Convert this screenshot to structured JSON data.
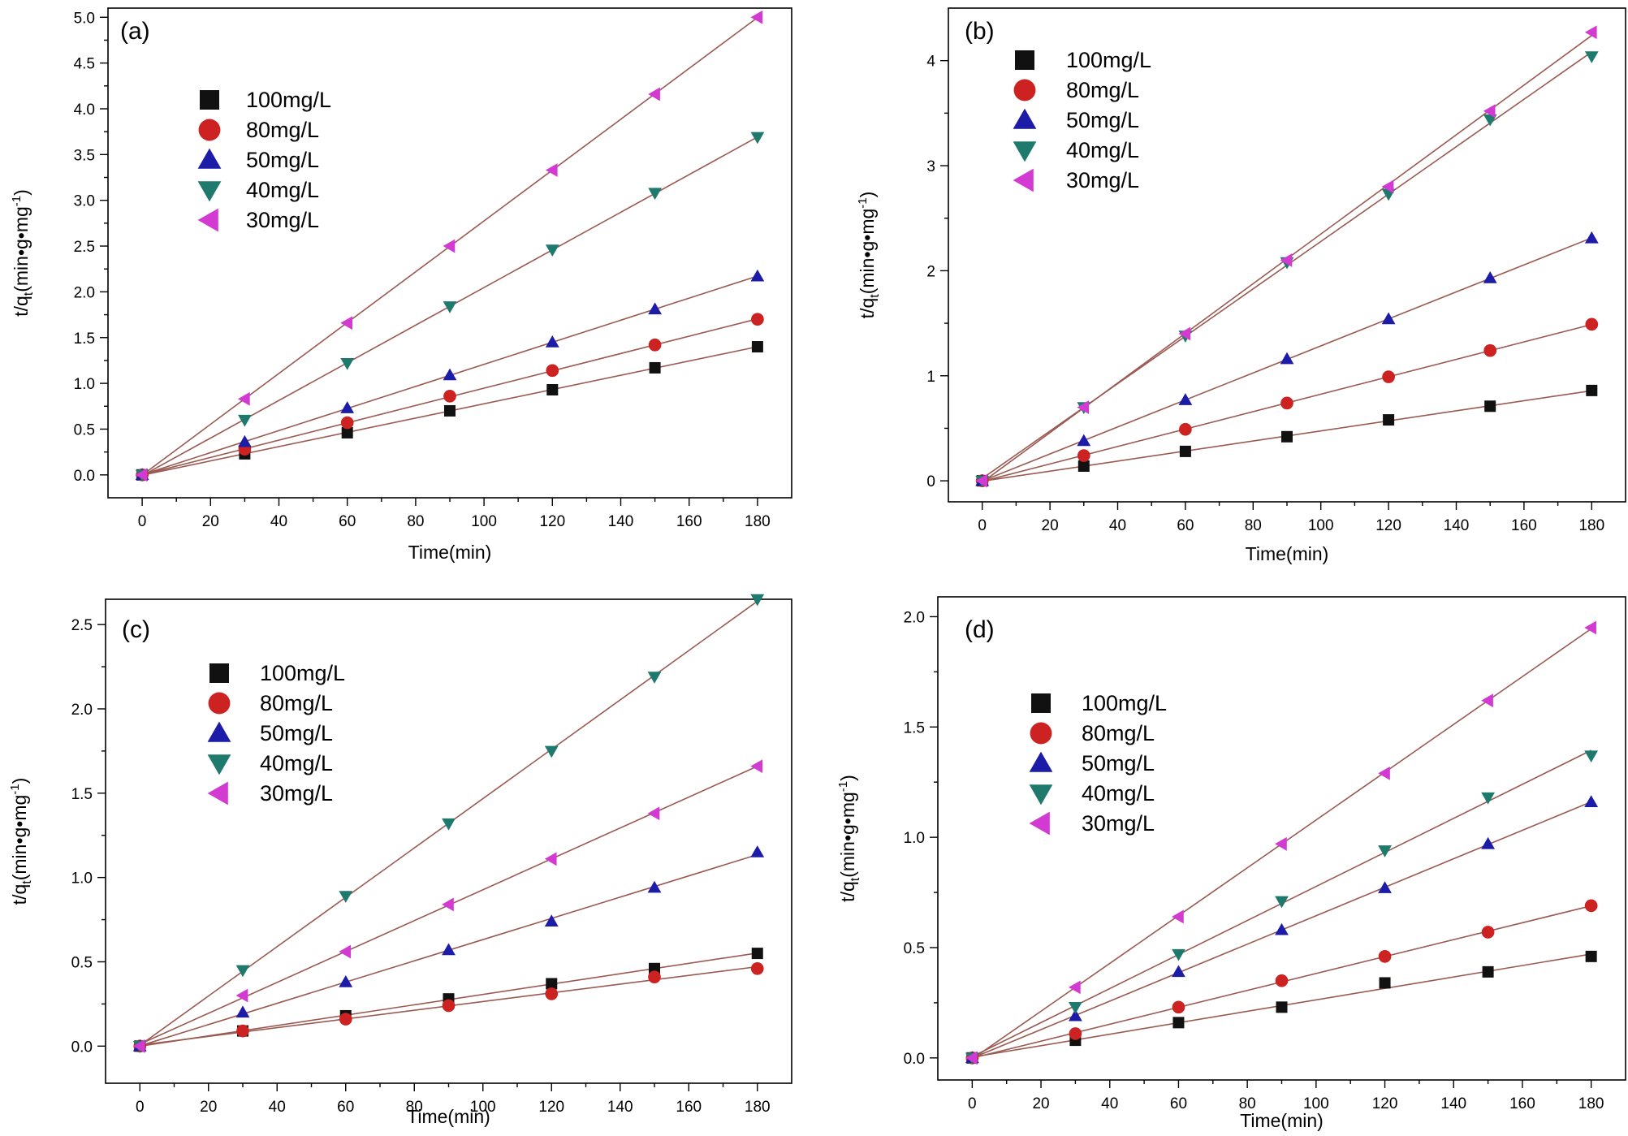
{
  "series_styles": [
    {
      "marker": "square",
      "color": "#111111"
    },
    {
      "marker": "circle",
      "color": "#cc2222"
    },
    {
      "marker": "triangle-up",
      "color": "#1c1ca8"
    },
    {
      "marker": "triangle-down",
      "color": "#1f7a6e"
    },
    {
      "marker": "triangle-left",
      "color": "#d23ad2"
    }
  ],
  "line_color": "#9a5a52",
  "chart_data": [
    {
      "type": "scatter",
      "panel_label": "(a)",
      "title": "",
      "xlabel": "Time(min)",
      "ylabel": "t/q(min•g•mg)",
      "ylabel_parts": {
        "main": "t/q",
        "sub": "t",
        "unit": "(min•g•mg",
        "sup": "-1",
        "close": ")"
      },
      "xlim": [
        -10,
        190
      ],
      "ylim": [
        -0.25,
        5.1
      ],
      "xticks": [
        0,
        20,
        40,
        60,
        80,
        100,
        120,
        140,
        160,
        180
      ],
      "xtick_labels": [
        "0",
        "20",
        "40",
        "60",
        "80",
        "100",
        "120",
        "140",
        "160",
        "180"
      ],
      "yticks": [
        0.0,
        0.5,
        1.0,
        1.5,
        2.0,
        2.5,
        3.0,
        3.5,
        4.0,
        4.5,
        5.0
      ],
      "ytick_labels": [
        "0.0",
        "0.5",
        "1.0",
        "1.5",
        "2.0",
        "2.5",
        "3.0",
        "3.5",
        "4.0",
        "4.5",
        "5.0"
      ],
      "x": [
        0,
        30,
        60,
        90,
        120,
        150,
        180
      ],
      "legend_placement": "upper-left",
      "series": [
        {
          "name": "100mg/L",
          "values": [
            0,
            0.23,
            0.46,
            0.7,
            0.93,
            1.17,
            1.4
          ]
        },
        {
          "name": "80mg/L",
          "values": [
            0,
            0.28,
            0.57,
            0.86,
            1.14,
            1.42,
            1.7
          ]
        },
        {
          "name": "50mg/L",
          "values": [
            0,
            0.36,
            0.73,
            1.09,
            1.45,
            1.81,
            2.17
          ]
        },
        {
          "name": "40mg/L",
          "values": [
            0,
            0.6,
            1.22,
            1.84,
            2.46,
            3.08,
            3.69
          ]
        },
        {
          "name": "30mg/L",
          "values": [
            0,
            0.83,
            1.66,
            2.5,
            3.33,
            4.16,
            5.0
          ]
        }
      ]
    },
    {
      "type": "scatter",
      "panel_label": "(b)",
      "title": "",
      "xlabel": "Time(min)",
      "ylabel": "t/q(min•g•mg)",
      "ylabel_parts": {
        "main": "t/q",
        "sub": "t",
        "unit": "(min•g•mg",
        "sup": "-1",
        "close": ")"
      },
      "xlim": [
        -10,
        190
      ],
      "ylim": [
        -0.2,
        4.5
      ],
      "xticks": [
        0,
        20,
        40,
        60,
        80,
        100,
        120,
        140,
        160,
        180
      ],
      "xtick_labels": [
        "0",
        "20",
        "40",
        "60",
        "80",
        "100",
        "120",
        "140",
        "160",
        "180"
      ],
      "yticks": [
        0,
        1,
        2,
        3,
        4
      ],
      "ytick_labels": [
        "0",
        "1",
        "2",
        "3",
        "4"
      ],
      "x": [
        0,
        30,
        60,
        90,
        120,
        150,
        180
      ],
      "legend_placement": "upper-left",
      "series": [
        {
          "name": "100mg/L",
          "values": [
            0,
            0.14,
            0.28,
            0.42,
            0.58,
            0.71,
            0.86
          ]
        },
        {
          "name": "80mg/L",
          "values": [
            0,
            0.24,
            0.49,
            0.74,
            0.99,
            1.24,
            1.49
          ]
        },
        {
          "name": "50mg/L",
          "values": [
            0,
            0.38,
            0.77,
            1.16,
            1.54,
            1.93,
            2.31
          ]
        },
        {
          "name": "40mg/L",
          "values": [
            0,
            0.7,
            1.38,
            2.08,
            2.73,
            3.44,
            4.04
          ]
        },
        {
          "name": "30mg/L",
          "values": [
            0,
            0.7,
            1.4,
            2.1,
            2.8,
            3.52,
            4.27
          ]
        }
      ]
    },
    {
      "type": "scatter",
      "panel_label": "(c)",
      "title": "",
      "xlabel": "Time(min)",
      "ylabel": "t/q(min•g•mg)",
      "ylabel_parts": {
        "main": "t/q",
        "sub": "t",
        "unit": "(min•g•mg",
        "sup": "-1",
        "close": ")"
      },
      "xlim": [
        -10,
        190
      ],
      "ylim": [
        -0.22,
        2.65
      ],
      "xticks": [
        0,
        20,
        40,
        60,
        80,
        100,
        120,
        140,
        160,
        180
      ],
      "xtick_labels": [
        "0",
        "20",
        "40",
        "60",
        "80",
        "100",
        "120",
        "140",
        "160",
        "180"
      ],
      "yticks": [
        0.0,
        0.5,
        1.0,
        1.5,
        2.0,
        2.5
      ],
      "ytick_labels": [
        "0.0",
        "0.5",
        "1.0",
        "1.5",
        "2.0",
        "2.5"
      ],
      "x": [
        0,
        30,
        60,
        90,
        120,
        150,
        180
      ],
      "legend_placement": "upper-left",
      "series": [
        {
          "name": "100mg/L",
          "values": [
            0,
            0.09,
            0.18,
            0.28,
            0.37,
            0.46,
            0.55
          ]
        },
        {
          "name": "80mg/L",
          "values": [
            0,
            0.09,
            0.16,
            0.24,
            0.31,
            0.41,
            0.46
          ]
        },
        {
          "name": "50mg/L",
          "values": [
            0,
            0.2,
            0.38,
            0.57,
            0.74,
            0.94,
            1.15
          ]
        },
        {
          "name": "40mg/L",
          "values": [
            0,
            0.45,
            0.89,
            1.32,
            1.75,
            2.19,
            2.65
          ]
        },
        {
          "name": "30mg/L",
          "values": [
            0,
            0.3,
            0.56,
            0.84,
            1.11,
            1.38,
            1.66
          ]
        }
      ]
    },
    {
      "type": "scatter",
      "panel_label": "(d)",
      "title": "",
      "xlabel": "Time(min)",
      "ylabel": "t/q(min•g•mg)",
      "ylabel_parts": {
        "main": "t/q",
        "sub": "t",
        "unit": "(min•g•mg",
        "sup": "-1",
        "close": ")"
      },
      "xlim": [
        -10,
        190
      ],
      "ylim": [
        -0.1,
        2.09
      ],
      "xticks": [
        0,
        20,
        40,
        60,
        80,
        100,
        120,
        140,
        160,
        180
      ],
      "xtick_labels": [
        "0",
        "20",
        "40",
        "60",
        "80",
        "100",
        "120",
        "140",
        "160",
        "180"
      ],
      "yticks": [
        0.0,
        0.5,
        1.0,
        1.5,
        2.0
      ],
      "ytick_labels": [
        "0.0",
        "0.5",
        "1.0",
        "1.5",
        "2.0"
      ],
      "x": [
        0,
        30,
        60,
        90,
        120,
        150,
        180
      ],
      "legend_placement": "center-left",
      "series": [
        {
          "name": "100mg/L",
          "values": [
            0,
            0.08,
            0.16,
            0.23,
            0.34,
            0.39,
            0.46
          ]
        },
        {
          "name": "80mg/L",
          "values": [
            0,
            0.11,
            0.23,
            0.35,
            0.46,
            0.57,
            0.69
          ]
        },
        {
          "name": "50mg/L",
          "values": [
            0,
            0.19,
            0.39,
            0.58,
            0.77,
            0.97,
            1.16
          ]
        },
        {
          "name": "40mg/L",
          "values": [
            0,
            0.23,
            0.47,
            0.71,
            0.94,
            1.18,
            1.37
          ]
        },
        {
          "name": "30mg/L",
          "values": [
            0,
            0.32,
            0.64,
            0.97,
            1.29,
            1.62,
            1.95
          ]
        }
      ]
    }
  ]
}
